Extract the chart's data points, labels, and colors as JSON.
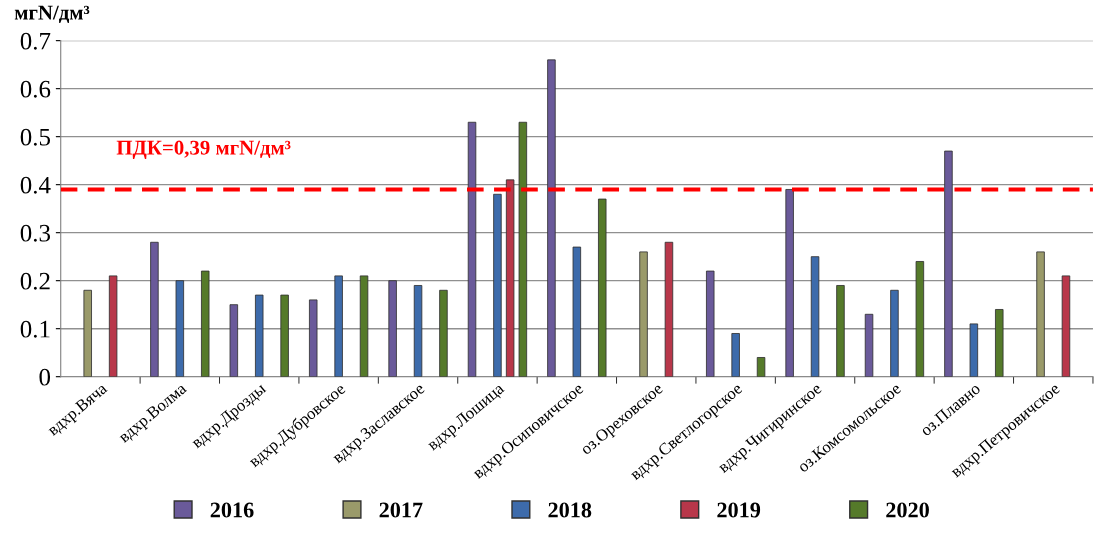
{
  "chart_data": {
    "type": "bar",
    "ylabel": "мгN/дм³",
    "categories": [
      "вдхр.Вяча",
      "вдхр.Волма",
      "вдхр.Дрозды",
      "вдхр.Дубровское",
      "вдхр.Заславское",
      "вдхр.Лошица",
      "вдхр.Осиповичское",
      "оз.Ореховское",
      "вдхр.Светлогорское",
      "вдхр.Чигиринское",
      "оз.Комсомольское",
      "оз.Плавно",
      "вдхр.Петровичское"
    ],
    "series": [
      {
        "name": "2016",
        "color": "#6a5a9a",
        "values": [
          null,
          0.28,
          0.15,
          0.16,
          0.2,
          0.53,
          0.66,
          null,
          0.22,
          0.39,
          0.13,
          0.47,
          null
        ]
      },
      {
        "name": "2017",
        "color": "#9a9a6a",
        "values": [
          0.18,
          null,
          null,
          null,
          null,
          null,
          null,
          0.26,
          null,
          null,
          null,
          null,
          0.26
        ]
      },
      {
        "name": "2018",
        "color": "#3d6bab",
        "values": [
          null,
          0.2,
          0.17,
          0.21,
          0.19,
          0.38,
          0.27,
          null,
          0.09,
          0.25,
          0.18,
          0.11,
          null
        ]
      },
      {
        "name": "2019",
        "color": "#b8374a",
        "values": [
          0.21,
          null,
          null,
          null,
          null,
          0.41,
          null,
          0.28,
          null,
          null,
          null,
          null,
          0.21
        ]
      },
      {
        "name": "2020",
        "color": "#557a2a",
        "values": [
          null,
          0.22,
          0.17,
          0.21,
          0.18,
          0.53,
          0.37,
          null,
          0.04,
          0.19,
          0.24,
          0.14,
          null
        ]
      }
    ],
    "ylim": [
      0,
      0.7
    ],
    "yticks": [
      0,
      0.1,
      0.2,
      0.3,
      0.4,
      0.5,
      0.6,
      0.7
    ],
    "grid": "y",
    "legend": "bottom",
    "ref_lines": [
      {
        "axis": "y",
        "value": 0.39,
        "label": "ПДК=0,39 мгN/дм³",
        "color": "#ff0000",
        "line_style": "dashed"
      }
    ]
  }
}
